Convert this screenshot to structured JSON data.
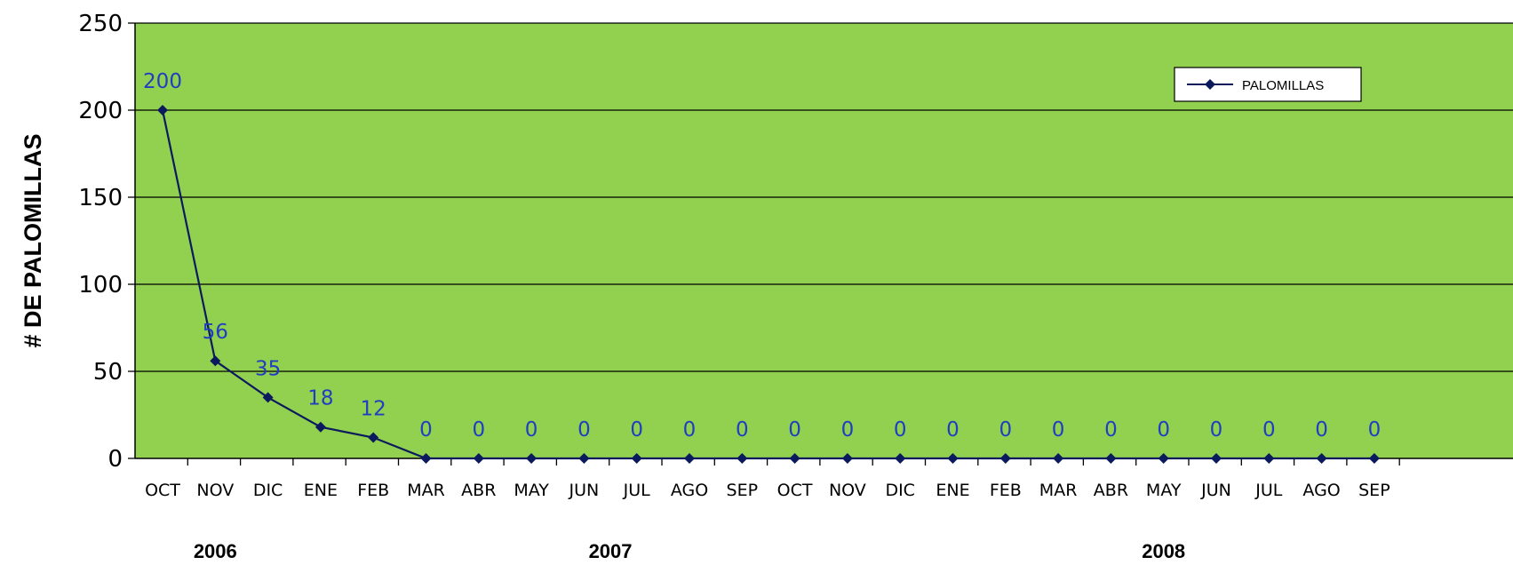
{
  "chart_data": {
    "type": "line",
    "ylabel": "# DE PALOMILLAS",
    "xlabel": "",
    "ylim": [
      0,
      250
    ],
    "yticks": [
      0,
      50,
      100,
      150,
      200,
      250
    ],
    "categories": [
      "OCT",
      "NOV",
      "DIC",
      "ENE",
      "FEB",
      "MAR",
      "ABR",
      "MAY",
      "JUN",
      "JUL",
      "AGO",
      "SEP",
      "OCT",
      "NOV",
      "DIC",
      "ENE",
      "FEB",
      "MAR",
      "ABR",
      "MAY",
      "JUN",
      "JUL",
      "AGO",
      "SEP"
    ],
    "groups": [
      {
        "label": "2006",
        "start": 0,
        "end": 2
      },
      {
        "label": "2007",
        "start": 3,
        "end": 14
      },
      {
        "label": "2008",
        "start": 15,
        "end": 23
      }
    ],
    "series": [
      {
        "name": "PALOMILLAS",
        "values": [
          200,
          56,
          35,
          18,
          12,
          0,
          0,
          0,
          0,
          0,
          0,
          0,
          0,
          0,
          0,
          0,
          0,
          0,
          0,
          0,
          0,
          0,
          0,
          0
        ],
        "color": "#0a1a5c"
      }
    ],
    "data_labels": true,
    "grid": true,
    "legend_position": "top-right",
    "plot_background": "#92d050",
    "label_color": "#1f3fc0"
  }
}
